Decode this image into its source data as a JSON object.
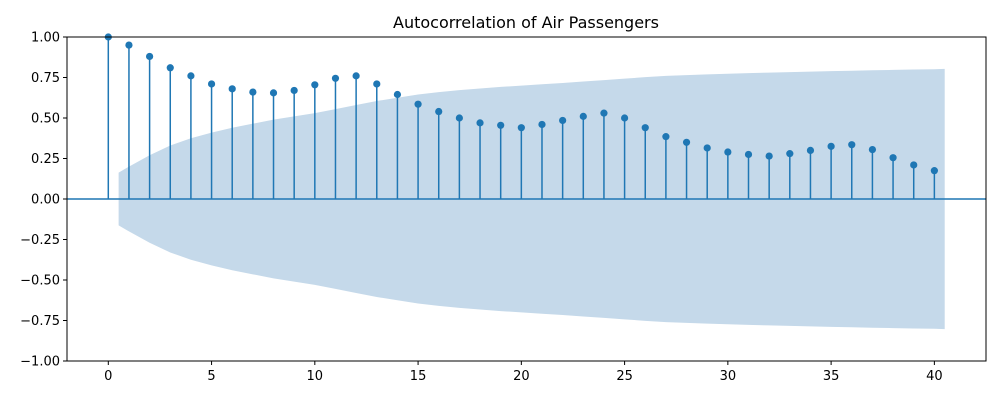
{
  "chart_data": {
    "type": "stem",
    "title": "Autocorrelation of Air Passengers",
    "xlabel": "",
    "ylabel": "",
    "xlim": [
      -2,
      42.5
    ],
    "ylim": [
      -1.0,
      1.0
    ],
    "x_ticks": [
      0,
      5,
      10,
      15,
      20,
      25,
      30,
      35,
      40
    ],
    "x_tick_labels": [
      "0",
      "5",
      "10",
      "15",
      "20",
      "25",
      "30",
      "35",
      "40"
    ],
    "y_ticks": [
      -1.0,
      -0.75,
      -0.5,
      -0.25,
      0.0,
      0.25,
      0.5,
      0.75,
      1.0
    ],
    "y_tick_labels": [
      "−1.00",
      "−0.75",
      "−0.50",
      "−0.25",
      "0.00",
      "0.25",
      "0.50",
      "0.75",
      "1.00"
    ],
    "grid": false,
    "legend": false,
    "series": [
      {
        "x": [
          0,
          1,
          2,
          3,
          4,
          5,
          6,
          7,
          8,
          9,
          10,
          11,
          12,
          13,
          14,
          15,
          16,
          17,
          18,
          19,
          20,
          21,
          22,
          23,
          24,
          25,
          26,
          27,
          28,
          29,
          30,
          31,
          32,
          33,
          34,
          35,
          36,
          37,
          38,
          39,
          40
        ],
        "values": [
          1.0,
          0.95,
          0.88,
          0.81,
          0.76,
          0.71,
          0.68,
          0.66,
          0.655,
          0.67,
          0.705,
          0.745,
          0.76,
          0.71,
          0.645,
          0.585,
          0.54,
          0.5,
          0.47,
          0.455,
          0.44,
          0.46,
          0.485,
          0.51,
          0.53,
          0.5,
          0.44,
          0.385,
          0.35,
          0.315,
          0.29,
          0.275,
          0.265,
          0.28,
          0.3,
          0.325,
          0.335,
          0.305,
          0.255,
          0.21,
          0.175
        ]
      }
    ],
    "confidence_band": {
      "x": [
        0.5,
        1,
        2,
        3,
        4,
        5,
        6,
        7,
        8,
        9,
        10,
        11,
        12,
        13,
        14,
        15,
        16,
        17,
        18,
        19,
        20,
        21,
        22,
        23,
        24,
        25,
        26,
        27,
        28,
        29,
        30,
        31,
        32,
        33,
        34,
        35,
        36,
        37,
        38,
        39,
        40,
        40.5
      ],
      "upper": [
        0.163,
        0.2,
        0.27,
        0.33,
        0.375,
        0.41,
        0.44,
        0.465,
        0.49,
        0.51,
        0.53,
        0.555,
        0.58,
        0.605,
        0.625,
        0.645,
        0.66,
        0.672,
        0.682,
        0.692,
        0.7,
        0.708,
        0.716,
        0.725,
        0.734,
        0.743,
        0.752,
        0.76,
        0.765,
        0.769,
        0.773,
        0.777,
        0.78,
        0.783,
        0.786,
        0.789,
        0.792,
        0.795,
        0.797,
        0.799,
        0.801,
        0.803
      ]
    },
    "colors": {
      "stem": "#1f77b4",
      "band": "#c5d9ea",
      "axis": "#000000"
    }
  }
}
